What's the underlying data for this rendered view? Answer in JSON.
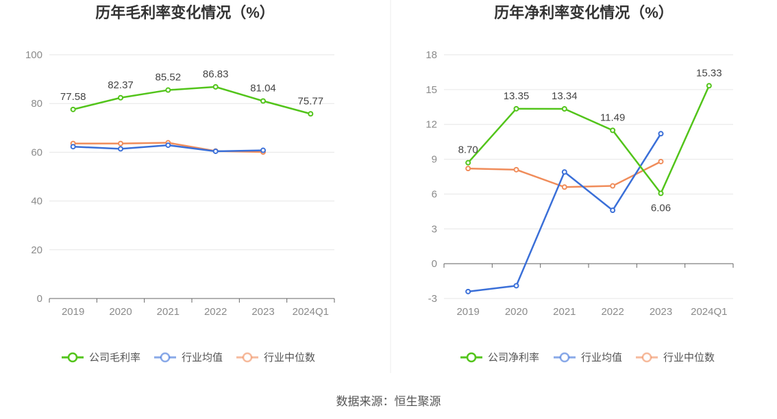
{
  "source_text": "数据来源：恒生聚源",
  "chart_data": [
    {
      "type": "line",
      "title": "历年毛利率变化情况（%）",
      "xlabel": "",
      "ylabel": "",
      "categories": [
        "2019",
        "2020",
        "2021",
        "2022",
        "2023",
        "2024Q1"
      ],
      "ylim": [
        0,
        100
      ],
      "yticks": [
        0,
        20,
        40,
        60,
        80,
        100
      ],
      "grid": true,
      "legend_position": "bottom",
      "series": [
        {
          "name": "公司毛利率",
          "color": "#52c41a",
          "values": [
            77.58,
            82.37,
            85.52,
            86.83,
            81.04,
            75.77
          ],
          "labels": [
            "77.58",
            "82.37",
            "85.52",
            "86.83",
            "81.04",
            "75.77"
          ]
        },
        {
          "name": "行业均值",
          "color": "#3a6fd8",
          "values": [
            62.3,
            61.4,
            62.9,
            60.4,
            60.8,
            null
          ]
        },
        {
          "name": "行业中位数",
          "color": "#f08c5a",
          "values": [
            63.6,
            63.6,
            63.9,
            60.5,
            60.1,
            null
          ]
        }
      ]
    },
    {
      "type": "line",
      "title": "历年净利率变化情况（%）",
      "xlabel": "",
      "ylabel": "",
      "categories": [
        "2019",
        "2020",
        "2021",
        "2022",
        "2023",
        "2024Q1"
      ],
      "ylim": [
        -3,
        18
      ],
      "yticks": [
        -3,
        0,
        3,
        6,
        9,
        12,
        15,
        18
      ],
      "grid": true,
      "legend_position": "bottom",
      "series": [
        {
          "name": "公司净利率",
          "color": "#52c41a",
          "values": [
            8.7,
            13.35,
            13.34,
            11.49,
            6.06,
            15.33
          ],
          "labels": [
            "8.70",
            "13.35",
            "13.34",
            "11.49",
            "6.06",
            "15.33"
          ]
        },
        {
          "name": "行业均值",
          "color": "#3a6fd8",
          "values": [
            -2.4,
            -1.9,
            7.9,
            4.6,
            11.2,
            null
          ]
        },
        {
          "name": "行业中位数",
          "color": "#f08c5a",
          "values": [
            8.2,
            8.1,
            6.6,
            6.7,
            8.8,
            null
          ]
        }
      ]
    }
  ]
}
